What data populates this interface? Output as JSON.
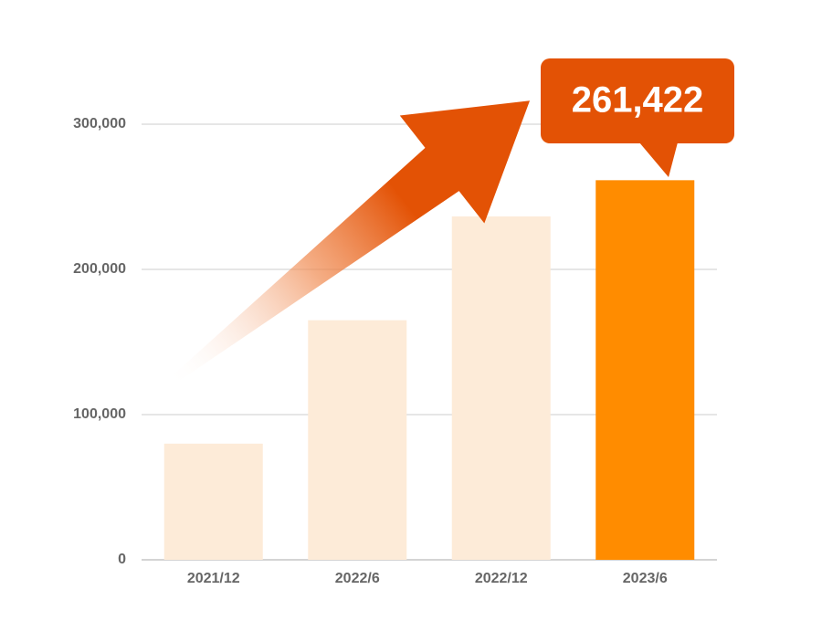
{
  "chart_data": {
    "type": "bar",
    "categories": [
      "2021/12",
      "2022/6",
      "2022/12",
      "2023/6"
    ],
    "values": [
      80000,
      165000,
      236500,
      261422
    ],
    "value_labels": [
      null,
      null,
      null,
      "261,422"
    ],
    "colors": [
      "#fdebd8",
      "#fdebd8",
      "#fdebd8",
      "#ff8c00"
    ],
    "ylim": [
      0,
      300000
    ],
    "yticks": [
      0,
      {
        "value": 100000,
        "label": "100,000"
      },
      {
        "value": 200000,
        "label": "200,000"
      },
      {
        "value": 300000,
        "label": "300,000"
      }
    ],
    "grid": true
  }
}
